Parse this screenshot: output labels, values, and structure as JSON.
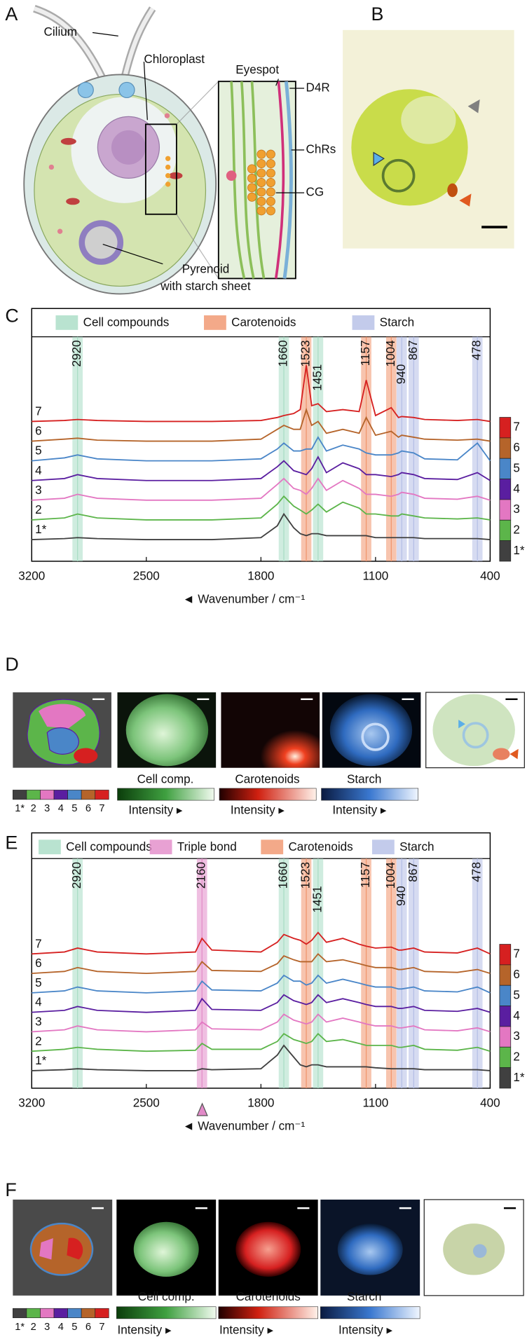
{
  "panel_a": {
    "letter": "A",
    "labels": {
      "cilium": "Cilium",
      "chloroplast": "Chloroplast",
      "eyespot": "Eyespot",
      "d4r": "D4R",
      "chrs": "ChRs",
      "cg": "CG",
      "pyrenoid": "Pyrenoid",
      "starch_sheet": "with starch sheet"
    }
  },
  "panel_b": {
    "letter": "B"
  },
  "panel_c": {
    "letter": "C"
  },
  "panel_d": {
    "letter": "D",
    "bars": [
      "Cell comp.",
      "Carotenoids",
      "Starch"
    ],
    "intensity": "Intensity ▸"
  },
  "panel_e": {
    "letter": "E"
  },
  "panel_f": {
    "letter": "F",
    "bars": [
      "Cell comp.",
      "Carotenoids",
      "Starch"
    ],
    "intensity": "Intensity ▸"
  },
  "chart_data": [
    {
      "type": "line",
      "xlabel": "◄ Wavenumber / cm⁻¹",
      "xlim": [
        3200,
        400
      ],
      "xticks": [
        3200,
        2500,
        1800,
        1100,
        400
      ],
      "ylim": [
        -1.1,
        10.3
      ],
      "bands": [
        {
          "name": "Cell compounds",
          "color": "#a8dcc4",
          "positions": [
            2920,
            1660,
            1451
          ]
        },
        {
          "name": "Carotenoids",
          "color": "#f0946c",
          "positions": [
            1523,
            1157,
            1004
          ]
        },
        {
          "name": "Starch",
          "color": "#b4bee6",
          "positions": [
            940,
            867,
            478
          ]
        }
      ],
      "x": [
        3200,
        3000,
        2920,
        2800,
        2500,
        2200,
        2160,
        2100,
        1800,
        1700,
        1660,
        1600,
        1560,
        1523,
        1490,
        1451,
        1400,
        1300,
        1200,
        1157,
        1100,
        1004,
        960,
        940,
        867,
        800,
        600,
        478,
        400
      ],
      "series": [
        {
          "name": "7",
          "color": "#d62020",
          "values": [
            6,
            6.05,
            6.1,
            6.05,
            6,
            6,
            6,
            6,
            6.05,
            6.2,
            6.3,
            6.4,
            6.6,
            8.85,
            6.8,
            6.9,
            6.5,
            6.6,
            6.5,
            8.1,
            6.3,
            6.7,
            6.2,
            6.25,
            6.2,
            6.1,
            6.05,
            6.1,
            6
          ]
        },
        {
          "name": "6",
          "color": "#b5642a",
          "values": [
            5,
            5.1,
            5.15,
            5.05,
            5,
            5,
            5,
            5,
            5.1,
            5.6,
            5.8,
            5.6,
            5.6,
            6.6,
            5.8,
            6,
            5.4,
            5.6,
            5.4,
            6.2,
            5.3,
            5.5,
            5.2,
            5.3,
            5.2,
            5.1,
            5.05,
            5.1,
            5
          ]
        },
        {
          "name": "5",
          "color": "#4a86c8",
          "values": [
            4,
            4.15,
            4.3,
            4.1,
            4,
            4,
            4,
            4,
            4.1,
            4.6,
            4.9,
            4.5,
            4.5,
            4.6,
            4.6,
            5.2,
            4.5,
            4.8,
            4.6,
            4.4,
            4.3,
            4.3,
            4.4,
            4.5,
            4.4,
            4.1,
            4.05,
            4.9,
            4
          ]
        },
        {
          "name": "4",
          "color": "#5a1ea0",
          "values": [
            3,
            3.1,
            3.3,
            3.1,
            3,
            3,
            3,
            3,
            3.1,
            3.7,
            4,
            3.5,
            3.4,
            3.3,
            3.6,
            4.2,
            3.4,
            3.9,
            3.6,
            3.3,
            3.3,
            3.2,
            3.3,
            3.4,
            3.3,
            3.1,
            3.05,
            3.4,
            3
          ]
        },
        {
          "name": "3",
          "color": "#e377c2",
          "values": [
            2,
            2.1,
            2.3,
            2.1,
            2,
            2,
            2,
            2,
            2.1,
            2.8,
            3.1,
            2.6,
            2.5,
            2.3,
            2.6,
            3.1,
            2.5,
            3,
            2.6,
            2.3,
            2.3,
            2.2,
            2.3,
            2.4,
            2.3,
            2.1,
            2.05,
            2.2,
            2
          ]
        },
        {
          "name": "2",
          "color": "#5cb54a",
          "values": [
            1,
            1.1,
            1.3,
            1.1,
            1,
            1,
            1,
            1,
            1.1,
            1.8,
            2.2,
            1.7,
            1.5,
            1.3,
            1.5,
            1.8,
            1.4,
            1.9,
            1.6,
            1.3,
            1.3,
            1.2,
            1.2,
            1.3,
            1.2,
            1.1,
            1.05,
            1.1,
            1
          ]
        },
        {
          "name": "1*",
          "color": "#404040",
          "values": [
            0,
            0.05,
            0.1,
            0.05,
            0,
            0,
            0,
            0,
            0.1,
            0.7,
            1.3,
            0.6,
            0.3,
            0.2,
            0.3,
            0.3,
            0.2,
            0.2,
            0.2,
            0.2,
            0.1,
            0.1,
            0.1,
            0.1,
            0.1,
            0.05,
            0.05,
            0.05,
            0
          ]
        }
      ]
    },
    {
      "type": "line",
      "xlabel": "◄ Wavenumber / cm⁻¹",
      "xlim": [
        3200,
        400
      ],
      "xticks": [
        3200,
        2500,
        1800,
        1100,
        400
      ],
      "ylim": [
        -0.9,
        10.9
      ],
      "bands": [
        {
          "name": "Cell compounds",
          "color": "#a8dcc4",
          "positions": [
            2920,
            1660,
            1451
          ]
        },
        {
          "name": "Triple bond",
          "color": "#e28ac8",
          "positions": [
            2160
          ]
        },
        {
          "name": "Carotenoids",
          "color": "#f0946c",
          "positions": [
            1523,
            1157,
            1004
          ]
        },
        {
          "name": "Starch",
          "color": "#b4bee6",
          "positions": [
            940,
            867,
            478
          ]
        }
      ],
      "x": [
        3200,
        3000,
        2920,
        2800,
        2500,
        2200,
        2160,
        2100,
        1800,
        1700,
        1660,
        1600,
        1560,
        1523,
        1490,
        1451,
        1400,
        1300,
        1200,
        1157,
        1100,
        1004,
        960,
        940,
        867,
        800,
        600,
        478,
        400
      ],
      "series": [
        {
          "name": "7",
          "color": "#d62020",
          "values": [
            6,
            6.1,
            6.3,
            6.1,
            6,
            6.1,
            6.8,
            6.2,
            6.1,
            6.6,
            7,
            6.8,
            6.7,
            6.5,
            6.7,
            7.1,
            6.6,
            6.8,
            6.5,
            6.4,
            6.3,
            6.35,
            6.2,
            6.2,
            6.3,
            6.1,
            6.05,
            6.3,
            6
          ]
        },
        {
          "name": "6",
          "color": "#b5642a",
          "values": [
            5,
            5.1,
            5.3,
            5.1,
            5,
            5.1,
            5.6,
            5.15,
            5.1,
            5.5,
            5.9,
            5.7,
            5.6,
            5.6,
            5.6,
            6,
            5.6,
            5.7,
            5.5,
            5.4,
            5.3,
            5.3,
            5.2,
            5.2,
            5.3,
            5.1,
            5.05,
            5.2,
            5
          ]
        },
        {
          "name": "5",
          "color": "#4a86c8",
          "values": [
            4,
            4.1,
            4.3,
            4.1,
            4,
            4.1,
            4.6,
            4.15,
            4.1,
            4.5,
            4.9,
            4.6,
            4.6,
            4.4,
            4.5,
            4.9,
            4.5,
            4.7,
            4.5,
            4.4,
            4.3,
            4.3,
            4.2,
            4.2,
            4.3,
            4.1,
            4.05,
            4.3,
            4
          ]
        },
        {
          "name": "4",
          "color": "#5a1ea0",
          "values": [
            3,
            3.1,
            3.3,
            3.1,
            3,
            3.1,
            3.7,
            3.15,
            3.1,
            3.5,
            3.9,
            3.6,
            3.5,
            3.4,
            3.5,
            3.9,
            3.5,
            3.7,
            3.5,
            3.4,
            3.3,
            3.3,
            3.2,
            3.2,
            3.3,
            3.1,
            3.05,
            3.2,
            3
          ]
        },
        {
          "name": "3",
          "color": "#e377c2",
          "values": [
            2,
            2.1,
            2.3,
            2.1,
            2,
            2.1,
            2.5,
            2.15,
            2.1,
            2.5,
            2.9,
            2.6,
            2.5,
            2.4,
            2.5,
            2.9,
            2.5,
            2.7,
            2.5,
            2.4,
            2.3,
            2.3,
            2.2,
            2.2,
            2.3,
            2.1,
            2.05,
            2.2,
            2
          ]
        },
        {
          "name": "2",
          "color": "#5cb54a",
          "values": [
            1,
            1.1,
            1.2,
            1.1,
            1,
            1.05,
            1.4,
            1.1,
            1.1,
            1.5,
            1.9,
            1.6,
            1.5,
            1.4,
            1.5,
            1.9,
            1.5,
            1.6,
            1.4,
            1.3,
            1.3,
            1.3,
            1.2,
            1.2,
            1.3,
            1.1,
            1.05,
            1.2,
            1
          ]
        },
        {
          "name": "1*",
          "color": "#404040",
          "values": [
            0,
            0.05,
            0.1,
            0.05,
            0,
            0,
            0.1,
            0.05,
            0.1,
            0.8,
            1.3,
            0.7,
            0.3,
            0.2,
            0.3,
            0.3,
            0.2,
            0.2,
            0.2,
            0.2,
            0.15,
            0.1,
            0.1,
            0.1,
            0.1,
            0.05,
            0.05,
            0.05,
            0
          ]
        }
      ]
    }
  ]
}
